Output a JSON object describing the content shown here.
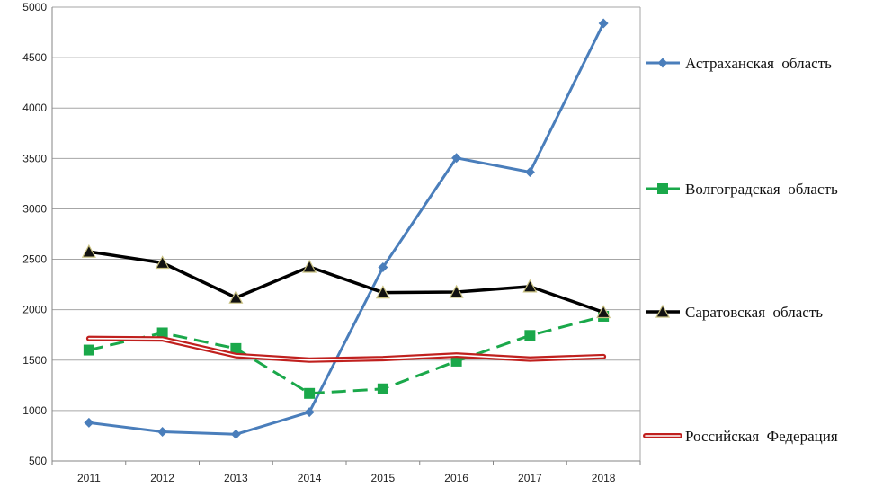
{
  "chart_data": {
    "type": "line",
    "title": "",
    "xlabel": "",
    "ylabel": "",
    "categories": [
      "2011",
      "2012",
      "2013",
      "2014",
      "2015",
      "2016",
      "2017",
      "2018"
    ],
    "ylim": [
      500,
      5000
    ],
    "yticks": [
      500,
      1000,
      1500,
      2000,
      2500,
      3000,
      3500,
      4000,
      4500,
      5000
    ],
    "grid": true,
    "legend_position": "right",
    "series": [
      {
        "name": "Астраханская  область",
        "values": [
          880,
          790,
          765,
          985,
          2420,
          3505,
          3365,
          4840
        ],
        "color": "#4a7ebb",
        "marker": "diamond",
        "line_style": "solid"
      },
      {
        "name": "Волгоградская  область",
        "values": [
          1600,
          1770,
          1615,
          1170,
          1215,
          1490,
          1745,
          1935
        ],
        "color": "#1aa84a",
        "marker": "square",
        "line_style": "dashed"
      },
      {
        "name": "Саратовская  область",
        "values": [
          2575,
          2465,
          2120,
          2425,
          2170,
          2175,
          2230,
          1975
        ],
        "color": "#000000",
        "marker": "triangle",
        "line_style": "solid"
      },
      {
        "name": "Российская  Федерация",
        "values": [
          1715,
          1710,
          1545,
          1500,
          1515,
          1550,
          1510,
          1535
        ],
        "color": "#c0201e",
        "marker": "none",
        "line_style": "double"
      }
    ]
  }
}
